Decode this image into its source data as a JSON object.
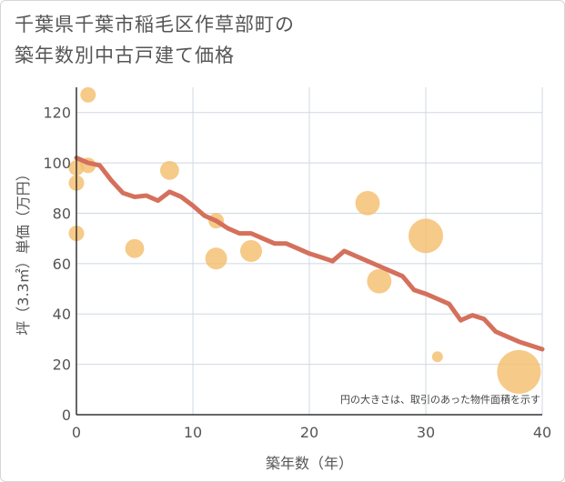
{
  "title_lines": [
    "千葉県千葉市稲毛区作草部町の",
    "築年数別中古戸建て価格"
  ],
  "note": "円の大きさは、取引のあった物件面積を示す",
  "colors": {
    "bubble": "#f4be6e",
    "line": "#d4705c",
    "grid": "#cfd8e0",
    "axis": "#333333"
  },
  "chart_data": {
    "type": "scatter",
    "title": "千葉県千葉市稲毛区作草部町の築年数別中古戸建て価格",
    "xlabel": "築年数（年）",
    "ylabel": "坪（3.3㎡）単価（万円）",
    "xlim": [
      0,
      40
    ],
    "ylim": [
      0,
      130
    ],
    "xticks": [
      0,
      10,
      20,
      30,
      40
    ],
    "yticks": [
      0,
      20,
      40,
      60,
      80,
      100,
      120
    ],
    "grid": true,
    "bubbles": [
      {
        "x": 0,
        "y": 98,
        "size": 2
      },
      {
        "x": 0,
        "y": 92,
        "size": 2
      },
      {
        "x": 0,
        "y": 72,
        "size": 2
      },
      {
        "x": 1,
        "y": 127,
        "size": 2
      },
      {
        "x": 1,
        "y": 99,
        "size": 2
      },
      {
        "x": 5,
        "y": 66,
        "size": 3
      },
      {
        "x": 8,
        "y": 97,
        "size": 3
      },
      {
        "x": 12,
        "y": 77,
        "size": 2
      },
      {
        "x": 12,
        "y": 62,
        "size": 4
      },
      {
        "x": 15,
        "y": 65,
        "size": 4
      },
      {
        "x": 25,
        "y": 84,
        "size": 5
      },
      {
        "x": 26,
        "y": 53,
        "size": 5
      },
      {
        "x": 30,
        "y": 71,
        "size": 10
      },
      {
        "x": 31,
        "y": 23,
        "size": 1
      },
      {
        "x": 38,
        "y": 17,
        "size": 16
      }
    ],
    "trend": {
      "x": [
        0,
        1,
        2,
        3,
        4,
        5,
        6,
        7,
        8,
        9,
        10,
        11,
        12,
        13,
        14,
        15,
        16,
        17,
        18,
        19,
        20,
        21,
        22,
        23,
        24,
        25,
        26,
        27,
        28,
        29,
        30,
        31,
        32,
        33,
        34,
        35,
        36,
        37,
        38,
        39,
        40
      ],
      "y": [
        102,
        100,
        99,
        93,
        88,
        86.5,
        87,
        85,
        88.5,
        86.5,
        83,
        79,
        77,
        74,
        72,
        72,
        70,
        68,
        68,
        66,
        64,
        62.5,
        61,
        65,
        63,
        61,
        59,
        57,
        55,
        49.5,
        48,
        46,
        44,
        37.5,
        39.5,
        38,
        33,
        31,
        29,
        27.5,
        26
      ]
    }
  }
}
